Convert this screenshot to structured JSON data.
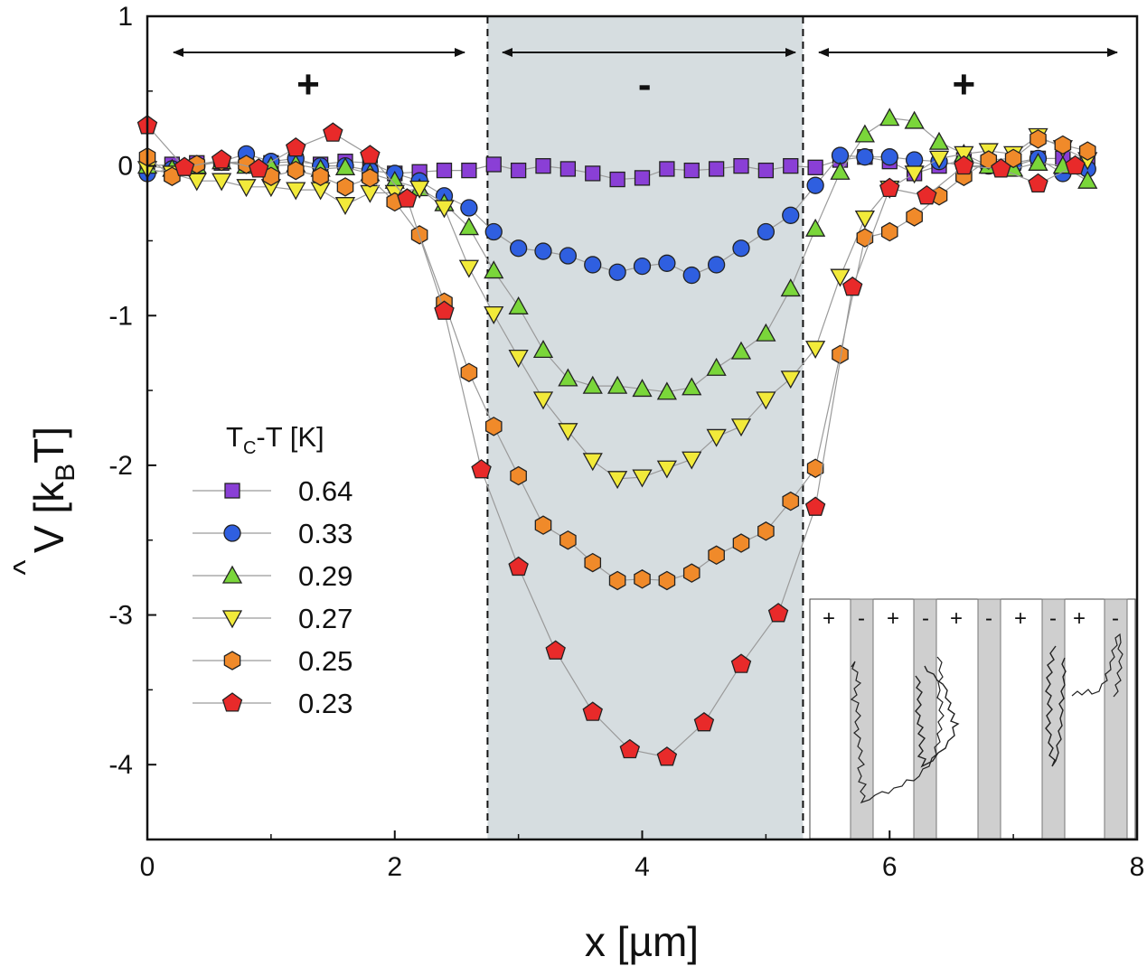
{
  "chart_data": {
    "type": "scatter",
    "xlabel": "x [µm]",
    "ylabel": "V̂ [k_B T]",
    "ylabel_main": "V",
    "ylabel_unit_open": "[k",
    "ylabel_sub": "B",
    "ylabel_unit_close": "T]",
    "xlim": [
      0,
      8
    ],
    "ylim": [
      -4.5,
      1
    ],
    "xticks": [
      "0",
      "2",
      "4",
      "6",
      "8"
    ],
    "yticks": [
      "1",
      "0",
      "-1",
      "-2",
      "-3",
      "-4"
    ],
    "xtick_values": [
      0,
      2,
      4,
      6,
      8
    ],
    "ytick_values": [
      1,
      0,
      -1,
      -2,
      -3,
      -4
    ],
    "region": {
      "x_start": 2.75,
      "x_end": 5.3,
      "label": "-"
    },
    "region_signs": [
      {
        "x": 1.3,
        "label": "+"
      },
      {
        "x": 4.02,
        "label": "-"
      },
      {
        "x": 6.6,
        "label": "+"
      }
    ],
    "legend": {
      "title_main": "T",
      "title_sub": "C",
      "title_rest": "-T [K]",
      "title": "T_C-T [K]",
      "position": "center-left"
    },
    "series": [
      {
        "name": "0.64",
        "marker": "square",
        "color": "#8a3fd6",
        "x": [
          0,
          0.2,
          0.4,
          0.6,
          0.8,
          1.0,
          1.2,
          1.4,
          1.6,
          1.8,
          2.0,
          2.2,
          2.4,
          2.6,
          2.8,
          3.0,
          3.2,
          3.4,
          3.6,
          3.8,
          4.0,
          4.2,
          4.4,
          4.6,
          4.8,
          5.0,
          5.2,
          5.4,
          5.6,
          5.8,
          6.0,
          6.2,
          6.4,
          6.6,
          6.8,
          7.0,
          7.2,
          7.4,
          7.6
        ],
        "y": [
          0.0,
          0.01,
          0.02,
          0.02,
          0.03,
          0.02,
          0.03,
          0.01,
          0.03,
          0.02,
          -0.05,
          -0.04,
          -0.03,
          -0.03,
          0.01,
          -0.03,
          0.0,
          -0.02,
          -0.05,
          -0.09,
          -0.08,
          -0.02,
          -0.03,
          -0.02,
          0.0,
          -0.03,
          0.0,
          -0.01,
          0.04,
          0.06,
          0.03,
          -0.05,
          0.0,
          0.04,
          0.0,
          0.02,
          0.05,
          0.05,
          0.06
        ]
      },
      {
        "name": "0.33",
        "marker": "circle",
        "color": "#2f5fe0",
        "x": [
          0,
          0.2,
          0.4,
          0.6,
          0.8,
          1.0,
          1.2,
          1.4,
          1.6,
          1.8,
          2.0,
          2.2,
          2.4,
          2.6,
          2.8,
          3.0,
          3.2,
          3.4,
          3.6,
          3.8,
          4.0,
          4.2,
          4.4,
          4.6,
          4.8,
          5.0,
          5.2,
          5.4,
          5.6,
          5.8,
          6.0,
          6.2,
          6.4,
          6.6,
          6.8,
          7.0,
          7.2,
          7.4,
          7.6
        ],
        "y": [
          -0.05,
          -0.02,
          0.0,
          0.03,
          0.08,
          0.03,
          0.05,
          0.0,
          0.0,
          -0.03,
          -0.05,
          -0.1,
          -0.2,
          -0.28,
          -0.44,
          -0.55,
          -0.57,
          -0.6,
          -0.66,
          -0.71,
          -0.67,
          -0.65,
          -0.73,
          -0.66,
          -0.55,
          -0.44,
          -0.33,
          -0.13,
          0.07,
          0.06,
          0.06,
          0.04,
          0.03,
          0.0,
          0.0,
          0.0,
          0.05,
          -0.05,
          -0.02
        ]
      },
      {
        "name": "0.29",
        "marker": "triangle-up",
        "color": "#7ad63a",
        "x": [
          0,
          0.2,
          0.4,
          0.6,
          0.8,
          1.0,
          1.2,
          1.4,
          1.6,
          1.8,
          2.0,
          2.2,
          2.4,
          2.6,
          2.8,
          3.0,
          3.2,
          3.4,
          3.6,
          3.8,
          4.0,
          4.2,
          4.4,
          4.6,
          4.8,
          5.0,
          5.2,
          5.4,
          5.6,
          5.8,
          6.0,
          6.2,
          6.4,
          6.6,
          6.8,
          7.0,
          7.2,
          7.4,
          7.6
        ],
        "y": [
          0.0,
          -0.02,
          0.0,
          0.03,
          0.0,
          0.0,
          0.01,
          -0.02,
          -0.01,
          -0.05,
          -0.1,
          -0.15,
          -0.25,
          -0.41,
          -0.7,
          -0.94,
          -1.23,
          -1.42,
          -1.47,
          -1.47,
          -1.49,
          -1.51,
          -1.48,
          -1.35,
          -1.24,
          -1.12,
          -0.82,
          -0.42,
          -0.04,
          0.21,
          0.32,
          0.3,
          0.16,
          0.08,
          0.0,
          -0.02,
          0.02,
          0.0,
          -0.1
        ]
      },
      {
        "name": "0.27",
        "marker": "triangle-down",
        "color": "#f2ea3a",
        "x": [
          0,
          0.2,
          0.4,
          0.6,
          0.8,
          1.0,
          1.2,
          1.4,
          1.6,
          1.8,
          2.0,
          2.2,
          2.4,
          2.6,
          2.8,
          3.0,
          3.2,
          3.4,
          3.6,
          3.8,
          4.0,
          4.2,
          4.4,
          4.6,
          4.8,
          5.0,
          5.2,
          5.4,
          5.6,
          5.8,
          6.0,
          6.2,
          6.4,
          6.6,
          6.8,
          7.0,
          7.2,
          7.4,
          7.6
        ],
        "y": [
          -0.02,
          -0.05,
          -0.1,
          -0.1,
          -0.14,
          -0.14,
          -0.16,
          -0.16,
          -0.26,
          -0.18,
          -0.18,
          -0.15,
          -0.28,
          -0.68,
          -0.99,
          -1.28,
          -1.56,
          -1.77,
          -1.97,
          -2.09,
          -2.08,
          -2.02,
          -1.96,
          -1.81,
          -1.74,
          -1.56,
          -1.42,
          -1.22,
          -0.74,
          -0.35,
          -0.15,
          -0.05,
          0.05,
          0.08,
          0.1,
          0.08,
          0.2,
          0.12,
          0.04
        ]
      },
      {
        "name": "0.25",
        "marker": "hexagon",
        "color": "#f08a2a",
        "x": [
          0,
          0.2,
          0.4,
          0.6,
          0.8,
          1.0,
          1.2,
          1.4,
          1.6,
          1.8,
          2.0,
          2.2,
          2.4,
          2.6,
          2.8,
          3.0,
          3.2,
          3.4,
          3.6,
          3.8,
          4.0,
          4.2,
          4.4,
          4.6,
          4.8,
          5.0,
          5.2,
          5.4,
          5.6,
          5.8,
          6.0,
          6.2,
          6.4,
          6.6,
          6.8,
          7.0,
          7.2,
          7.4,
          7.6
        ],
        "y": [
          0.06,
          -0.07,
          0.01,
          0.03,
          0.01,
          -0.07,
          -0.03,
          -0.07,
          -0.14,
          -0.08,
          -0.24,
          -0.46,
          -0.91,
          -1.38,
          -1.74,
          -2.07,
          -2.4,
          -2.5,
          -2.65,
          -2.77,
          -2.76,
          -2.77,
          -2.72,
          -2.6,
          -2.52,
          -2.44,
          -2.24,
          -2.02,
          -1.26,
          -0.48,
          -0.44,
          -0.34,
          -0.2,
          -0.07,
          0.04,
          0.05,
          0.18,
          0.14,
          0.1
        ]
      },
      {
        "name": "0.23",
        "marker": "pentagon",
        "color": "#e82a2a",
        "x": [
          0,
          0.3,
          0.6,
          0.9,
          1.2,
          1.5,
          1.8,
          2.1,
          2.4,
          2.7,
          3.0,
          3.3,
          3.6,
          3.9,
          4.2,
          4.5,
          4.8,
          5.1,
          5.4,
          5.7,
          6.0,
          6.3,
          6.6,
          6.9,
          7.2,
          7.5
        ],
        "y": [
          0.27,
          -0.01,
          0.04,
          -0.02,
          0.12,
          0.22,
          0.07,
          -0.22,
          -0.97,
          -2.03,
          -2.68,
          -3.24,
          -3.65,
          -3.9,
          -3.95,
          -3.72,
          -3.33,
          -2.99,
          -2.28,
          -0.81,
          -0.15,
          -0.2,
          0.0,
          -0.02,
          -0.12,
          0.0
        ]
      }
    ]
  },
  "inset": {
    "signs": [
      "+",
      "-",
      "+",
      "-",
      "+",
      "-",
      "+",
      "-",
      "+",
      "-"
    ]
  }
}
